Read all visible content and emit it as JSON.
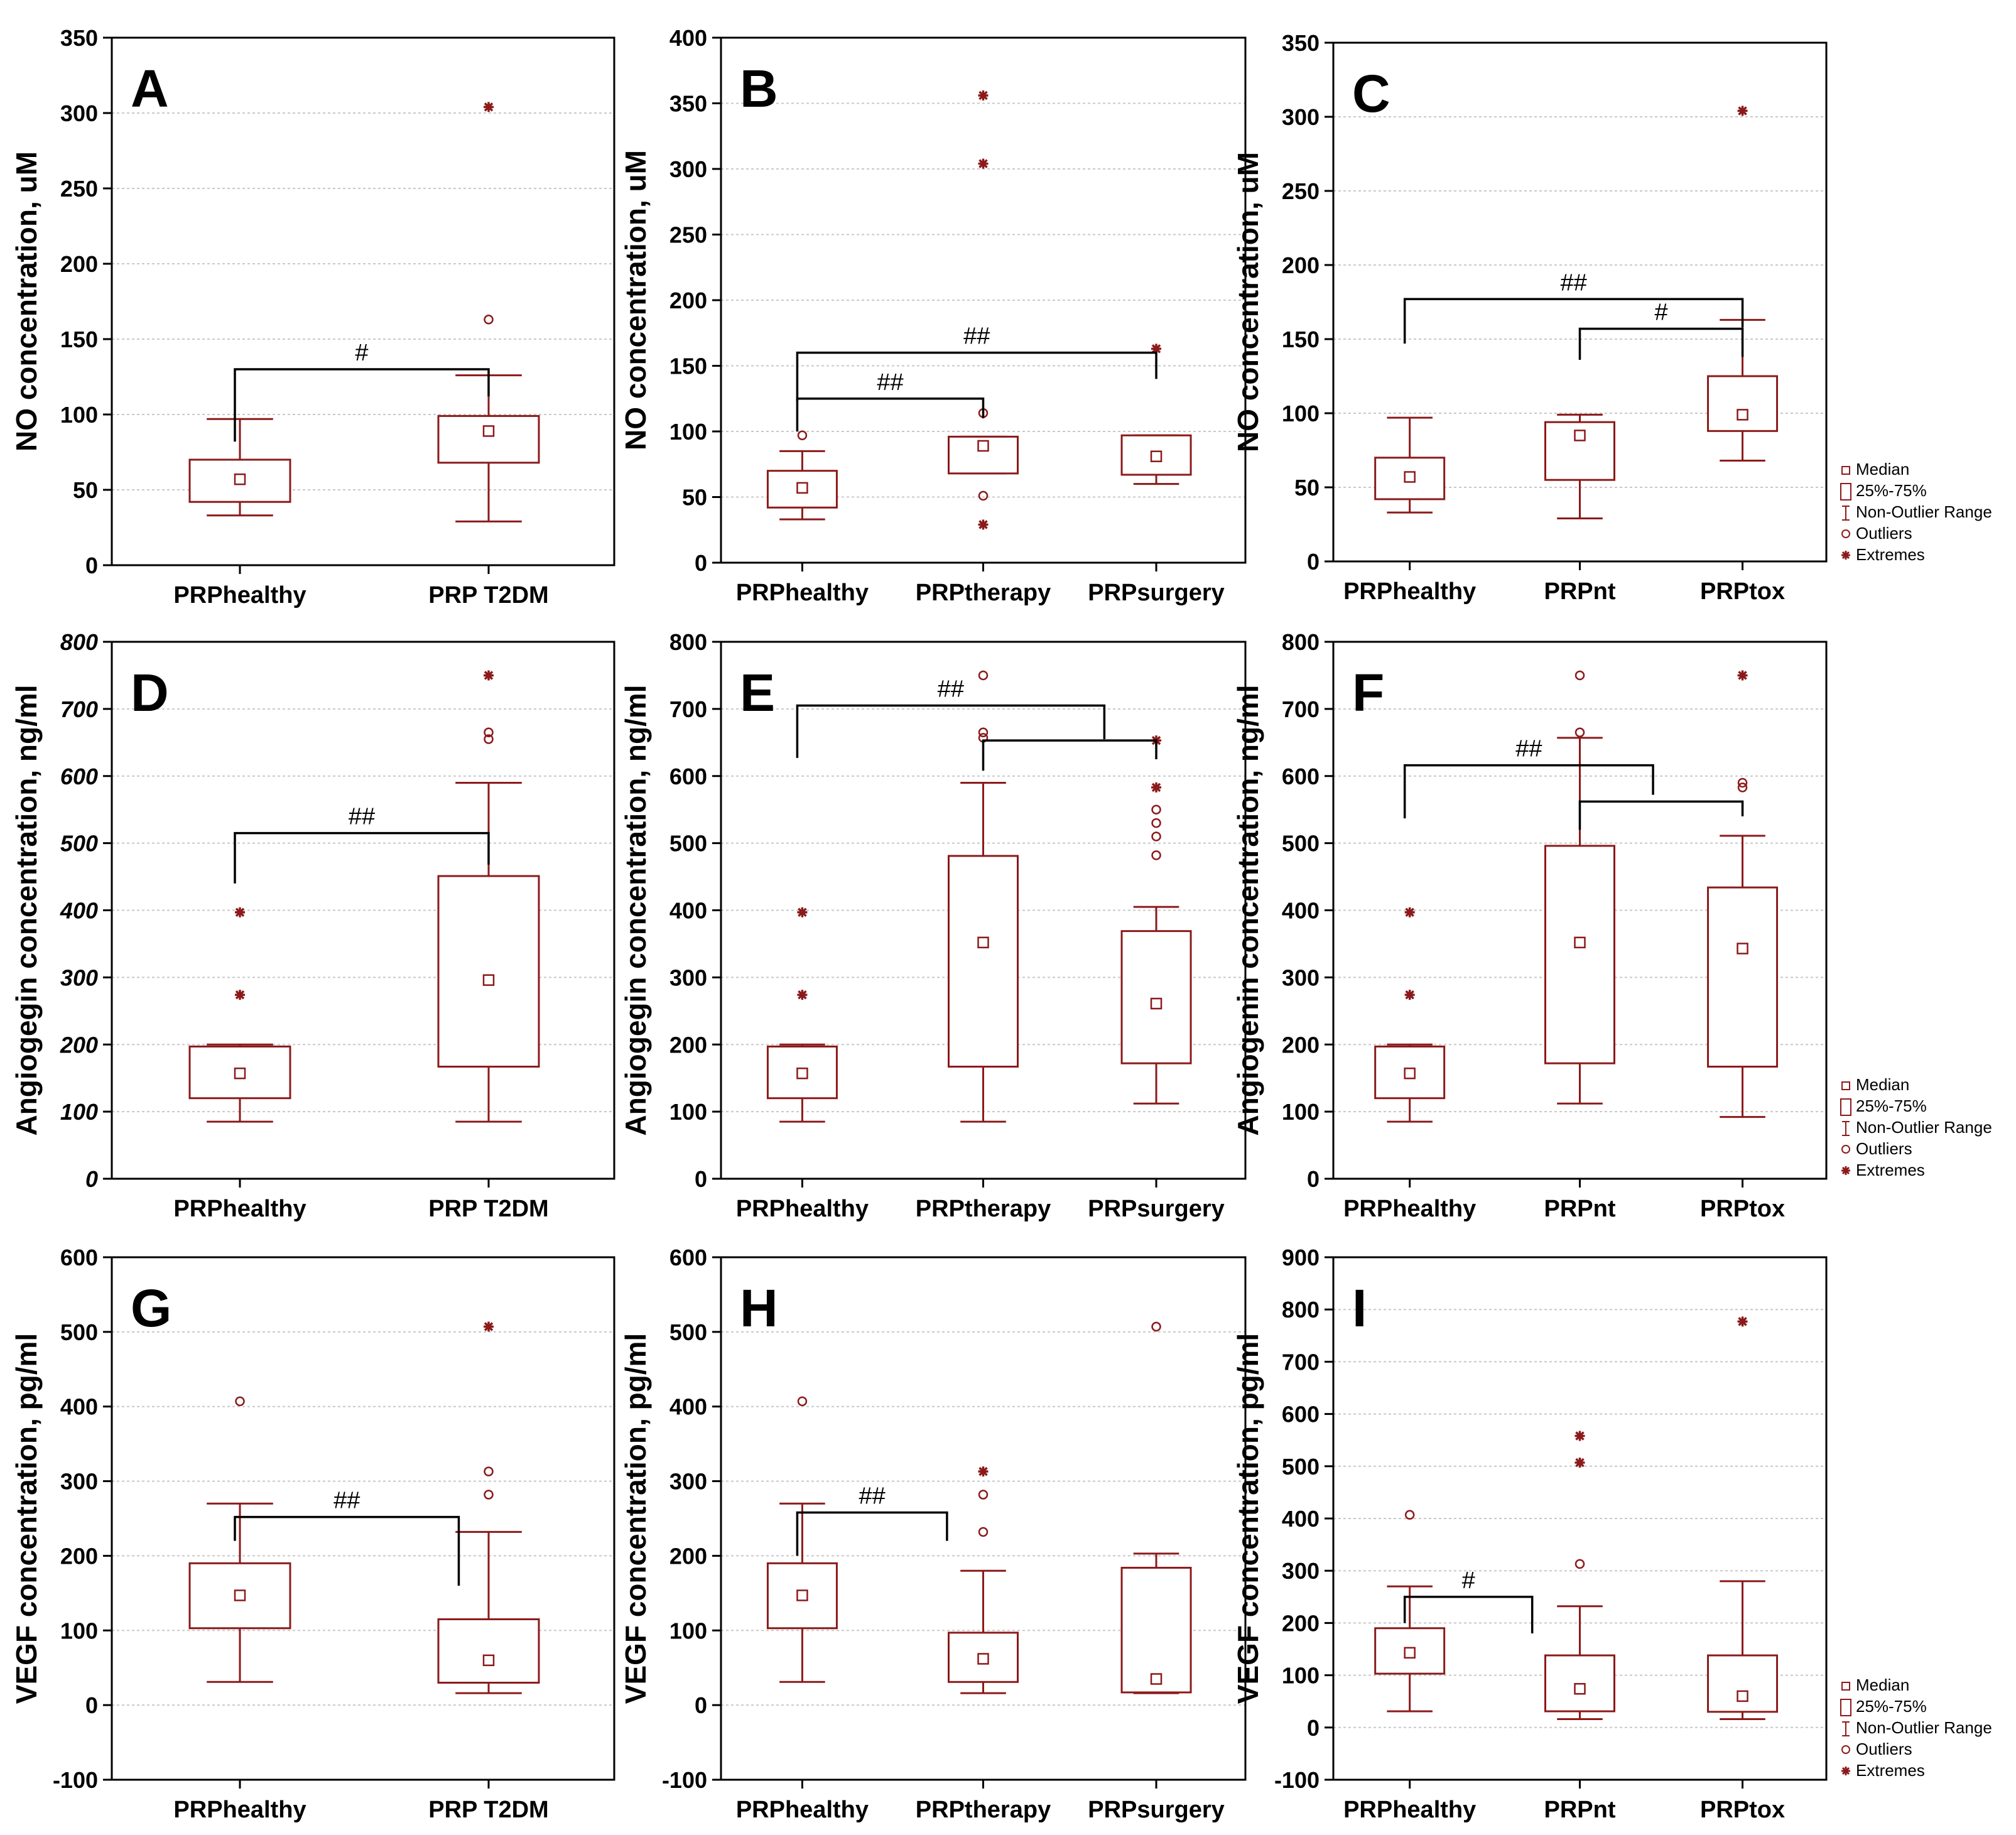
{
  "legend": {
    "median": "Median",
    "iqr": "25%-75%",
    "range": "Non-Outlier Range",
    "outliers": "Outliers",
    "extremes": "Extremes"
  },
  "colors": {
    "box": "#8b1a1a",
    "axis": "#000000",
    "grid": "#c8c8c8",
    "bracket": "#000000"
  },
  "chart_data": [
    {
      "type": "box",
      "panel": "A",
      "ylabel": "NO concentration, uM",
      "ylim": [
        0,
        350
      ],
      "yticks": [
        0,
        50,
        100,
        150,
        200,
        250,
        300,
        350
      ],
      "categories": [
        "PRPhealthy",
        "PRP T2DM"
      ],
      "boxes": [
        {
          "median": 57,
          "q1": 42,
          "q3": 70,
          "whisker_low": 33,
          "whisker_high": 97,
          "outliers": [],
          "extremes": []
        },
        {
          "median": 89,
          "q1": 68,
          "q3": 99,
          "whisker_low": 29,
          "whisker_high": 126,
          "outliers": [
            163
          ],
          "extremes": [
            304
          ]
        }
      ],
      "brackets": [
        {
          "from": 0,
          "to": 1,
          "y": 130,
          "left_end": 82,
          "right_end": 112,
          "label": "#"
        }
      ]
    },
    {
      "type": "box",
      "panel": "B",
      "ylabel": "NO concentration, uM",
      "ylim": [
        0,
        400
      ],
      "yticks": [
        0,
        50,
        100,
        150,
        200,
        250,
        300,
        350,
        400
      ],
      "categories": [
        "PRPhealthy",
        "PRPtherapy",
        "PRPsurgery"
      ],
      "boxes": [
        {
          "median": 57,
          "q1": 42,
          "q3": 70,
          "whisker_low": 33,
          "whisker_high": 85,
          "outliers": [
            97
          ],
          "extremes": []
        },
        {
          "median": 89,
          "q1": 68,
          "q3": 96,
          "whisker_low": 68,
          "whisker_high": 96,
          "outliers": [
            114,
            51
          ],
          "extremes": [
            356,
            304,
            29
          ]
        },
        {
          "median": 81,
          "q1": 67,
          "q3": 97,
          "whisker_low": 60,
          "whisker_high": 97,
          "outliers": [],
          "extremes": [
            163
          ]
        }
      ],
      "brackets": [
        {
          "from": 0,
          "to": 1,
          "y": 125,
          "left_end": 100,
          "right_end": 110,
          "label": "##"
        },
        {
          "from": 0,
          "to": 2,
          "y": 160,
          "left_end": 123,
          "right_end": 140,
          "label": "##"
        }
      ]
    },
    {
      "type": "box",
      "panel": "C",
      "ylabel": "NO concentration, uM",
      "ylim": [
        0,
        350
      ],
      "yticks": [
        0,
        50,
        100,
        150,
        200,
        250,
        300,
        350
      ],
      "categories": [
        "PRPhealthy",
        "PRPnt",
        "PRPtox"
      ],
      "boxes": [
        {
          "median": 57,
          "q1": 42,
          "q3": 70,
          "whisker_low": 33,
          "whisker_high": 97,
          "outliers": [],
          "extremes": []
        },
        {
          "median": 85,
          "q1": 55,
          "q3": 94,
          "whisker_low": 29,
          "whisker_high": 99,
          "outliers": [],
          "extremes": []
        },
        {
          "median": 99,
          "q1": 88,
          "q3": 125,
          "whisker_low": 68,
          "whisker_high": 163,
          "outliers": [],
          "extremes": [
            304
          ]
        }
      ],
      "brackets": [
        {
          "from": 1,
          "to": 2,
          "y": 157,
          "left_end": 136,
          "right_end": 138,
          "label": "#"
        },
        {
          "from": 0,
          "to": 2,
          "y": 177,
          "left_end": 147,
          "right_end": 158,
          "label": "##"
        }
      ]
    },
    {
      "type": "box",
      "panel": "D",
      "ylabel": "Angiogegin concentration, ng/ml",
      "ylim": [
        0,
        800
      ],
      "yticks": [
        0,
        100,
        200,
        300,
        400,
        500,
        600,
        700,
        800
      ],
      "categories": [
        "PRPhealthy",
        "PRP T2DM"
      ],
      "boxes": [
        {
          "median": 157,
          "q1": 120,
          "q3": 197,
          "whisker_low": 85,
          "whisker_high": 200,
          "outliers": [],
          "extremes": [
            397,
            274
          ]
        },
        {
          "median": 296,
          "q1": 167,
          "q3": 451,
          "whisker_low": 85,
          "whisker_high": 590,
          "outliers": [
            665,
            655
          ],
          "extremes": [
            750
          ]
        }
      ],
      "brackets": [
        {
          "from": 0,
          "to": 1,
          "y": 515,
          "left_end": 440,
          "right_end": 468,
          "label": "##"
        }
      ]
    },
    {
      "type": "box",
      "panel": "E",
      "ylabel": "Angiogegin concentration, ng/ml",
      "ylim": [
        0,
        800
      ],
      "yticks": [
        0,
        100,
        200,
        300,
        400,
        500,
        600,
        700,
        800
      ],
      "categories": [
        "PRPhealthy",
        "PRPtherapy",
        "PRPsurgery"
      ],
      "boxes": [
        {
          "median": 157,
          "q1": 120,
          "q3": 197,
          "whisker_low": 85,
          "whisker_high": 200,
          "outliers": [],
          "extremes": [
            397,
            274
          ]
        },
        {
          "median": 352,
          "q1": 167,
          "q3": 481,
          "whisker_low": 85,
          "whisker_high": 590,
          "outliers": [
            750,
            665,
            657
          ],
          "extremes": []
        },
        {
          "median": 261,
          "q1": 172,
          "q3": 369,
          "whisker_low": 112,
          "whisker_high": 405,
          "outliers": [
            550,
            530,
            510,
            482
          ],
          "extremes": [
            653,
            583
          ]
        }
      ],
      "brackets": [
        {
          "from": 1,
          "to": 2,
          "y": 653,
          "left_end": 608,
          "right_end": 625,
          "label": ""
        },
        {
          "from": 0,
          "to": 1.7,
          "y": 705,
          "left_end": 627,
          "right_end": 655,
          "label": "##"
        }
      ]
    },
    {
      "type": "box",
      "panel": "F",
      "ylabel": "Angiogenin concentration, ng/ml",
      "ylim": [
        0,
        800
      ],
      "yticks": [
        0,
        100,
        200,
        300,
        400,
        500,
        600,
        700,
        800
      ],
      "categories": [
        "PRPhealthy",
        "PRPnt",
        "PRPtox"
      ],
      "boxes": [
        {
          "median": 157,
          "q1": 120,
          "q3": 197,
          "whisker_low": 85,
          "whisker_high": 200,
          "outliers": [],
          "extremes": [
            397,
            274
          ]
        },
        {
          "median": 352,
          "q1": 172,
          "q3": 496,
          "whisker_low": 112,
          "whisker_high": 657,
          "outliers": [
            750,
            665
          ],
          "extremes": []
        },
        {
          "median": 343,
          "q1": 167,
          "q3": 434,
          "whisker_low": 92,
          "whisker_high": 511,
          "outliers": [
            590,
            583
          ],
          "extremes": [
            750
          ]
        }
      ],
      "brackets": [
        {
          "from": 1,
          "to": 2,
          "y": 562,
          "left_end": 520,
          "right_end": 540,
          "label": ""
        },
        {
          "from": 0,
          "to": 1.45,
          "y": 616,
          "left_end": 537,
          "right_end": 572,
          "label": "##"
        }
      ]
    },
    {
      "type": "box",
      "panel": "G",
      "ylabel": "VEGF concentration, pg/ml",
      "ylim": [
        -100,
        600
      ],
      "yticks": [
        -100,
        0,
        100,
        200,
        300,
        400,
        500,
        600
      ],
      "categories": [
        "PRPhealthy",
        "PRP T2DM"
      ],
      "boxes": [
        {
          "median": 147,
          "q1": 103,
          "q3": 190,
          "whisker_low": 31,
          "whisker_high": 270,
          "outliers": [
            407
          ],
          "extremes": []
        },
        {
          "median": 60,
          "q1": 30,
          "q3": 115,
          "whisker_low": 16,
          "whisker_high": 232,
          "outliers": [
            313,
            282
          ],
          "extremes": [
            507
          ]
        }
      ],
      "brackets": [
        {
          "from": 0,
          "to": 0.88,
          "y": 252,
          "left_end": 220,
          "right_end": 160,
          "label": "##"
        }
      ]
    },
    {
      "type": "box",
      "panel": "H",
      "ylabel": "VEGF concentration, pg/ml",
      "ylim": [
        -100,
        600
      ],
      "yticks": [
        -100,
        0,
        100,
        200,
        300,
        400,
        500,
        600
      ],
      "categories": [
        "PRPhealthy",
        "PRPtherapy",
        "PRPsurgery"
      ],
      "boxes": [
        {
          "median": 147,
          "q1": 103,
          "q3": 190,
          "whisker_low": 31,
          "whisker_high": 270,
          "outliers": [
            407
          ],
          "extremes": []
        },
        {
          "median": 62,
          "q1": 31,
          "q3": 97,
          "whisker_low": 16,
          "whisker_high": 180,
          "outliers": [
            282,
            232
          ],
          "extremes": [
            313
          ]
        },
        {
          "median": 35,
          "q1": 17,
          "q3": 184,
          "whisker_low": 16,
          "whisker_high": 203,
          "outliers": [
            507
          ],
          "extremes": []
        }
      ],
      "brackets": [
        {
          "from": 0,
          "to": 0.8,
          "y": 258,
          "left_end": 200,
          "right_end": 220,
          "label": "##"
        }
      ]
    },
    {
      "type": "box",
      "panel": "I",
      "ylabel": "VEGF concentration, pg/ml",
      "ylim": [
        -100,
        900
      ],
      "yticks": [
        -100,
        0,
        100,
        200,
        300,
        400,
        500,
        600,
        700,
        800,
        900
      ],
      "categories": [
        "PRPhealthy",
        "PRPnt",
        "PRPtox"
      ],
      "boxes": [
        {
          "median": 143,
          "q1": 103,
          "q3": 190,
          "whisker_low": 31,
          "whisker_high": 270,
          "outliers": [
            407
          ],
          "extremes": []
        },
        {
          "median": 74,
          "q1": 31,
          "q3": 138,
          "whisker_low": 16,
          "whisker_high": 232,
          "outliers": [
            313
          ],
          "extremes": [
            558,
            507
          ]
        },
        {
          "median": 60,
          "q1": 30,
          "q3": 138,
          "whisker_low": 16,
          "whisker_high": 280,
          "outliers": [],
          "extremes": [
            777
          ]
        }
      ],
      "brackets": [
        {
          "from": 0,
          "to": 0.72,
          "y": 250,
          "left_end": 200,
          "right_end": 180,
          "label": "#"
        }
      ]
    }
  ]
}
